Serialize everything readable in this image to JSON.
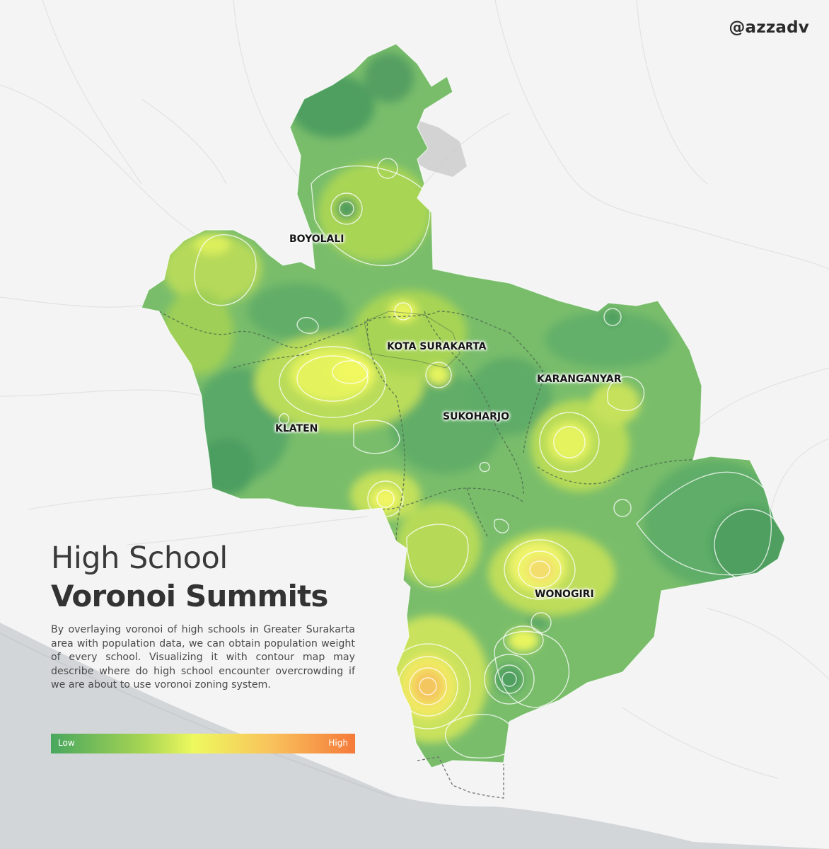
{
  "credit": "@azzadv",
  "title": {
    "line1": "High School",
    "line2": "Voronoi Summits"
  },
  "description": "By overlaying voronoi of high schools in Greater Surakarta area with population data, we can obtain population weight of every school. Visualizing it with contour map may describe where do high school encounter overcrowding if we are about to use voronoi zoning system.",
  "legend": {
    "low_label": "Low",
    "high_label": "High",
    "colors": [
      "#49a75f",
      "#a6d453",
      "#eef95e",
      "#f9c35c",
      "#f57a3a"
    ]
  },
  "regions": [
    {
      "id": "boyolali",
      "name": "BOYOLALI"
    },
    {
      "id": "kota-surakarta",
      "name": "KOTA SURAKARTA"
    },
    {
      "id": "karanganyar",
      "name": "KARANGANYAR"
    },
    {
      "id": "sukoharjo",
      "name": "SUKOHARJO"
    },
    {
      "id": "klaten",
      "name": "KLATEN"
    },
    {
      "id": "wonogiri",
      "name": "WONOGIRI"
    }
  ],
  "colors": {
    "background": "#f4f4f4",
    "sea": "#d3d6d9",
    "low": "#5aa967",
    "mid": "#a6d453",
    "peak": "#eef95e",
    "high": "#f1a751"
  }
}
